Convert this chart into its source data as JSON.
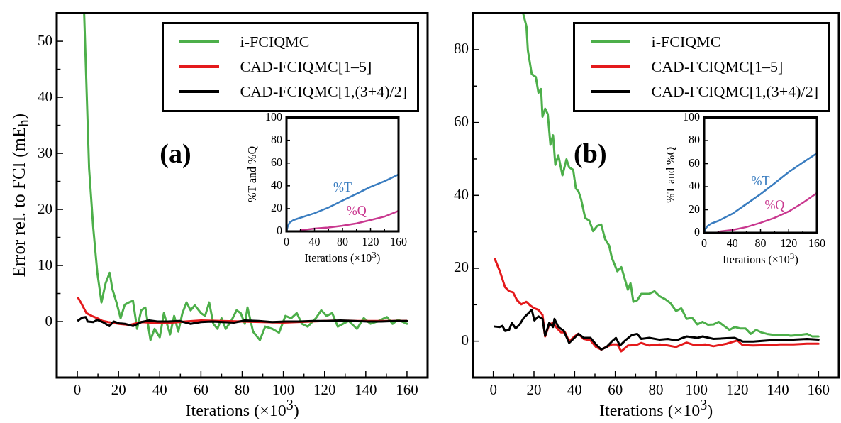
{
  "chart_data": [
    {
      "type": "line",
      "annotations": [
        "(a)"
      ],
      "xlabel": "Iterations (×10$^{3}$)",
      "ylabel": "Error rel. to FCI (mE$_{h}$)",
      "xlim": [
        -10,
        170
      ],
      "ylim": [
        -10,
        55
      ],
      "xticks": [
        0,
        {
          "value": 10,
          "label": null
        },
        20,
        {
          "value": 30,
          "label": null
        },
        40,
        {
          "value": 50,
          "label": null
        },
        60,
        {
          "value": 70,
          "label": null
        },
        80,
        {
          "value": 90,
          "label": null
        },
        100,
        {
          "value": 110,
          "label": null
        },
        120,
        {
          "value": 130,
          "label": null
        },
        140,
        {
          "value": 150,
          "label": null
        },
        160
      ],
      "yticks": [
        0,
        {
          "value": 5,
          "label": null
        },
        10,
        {
          "value": 15,
          "label": null
        },
        20,
        {
          "value": 25,
          "label": null
        },
        30,
        {
          "value": 35,
          "label": null
        },
        40,
        {
          "value": 45,
          "label": null
        },
        50
      ],
      "legend": "top right",
      "marker": "none",
      "line_style": "solid",
      "grid": false,
      "series": [
        {
          "name": "i-FCIQMC",
          "color": "#4daf4a",
          "x": [
            3.3,
            5.7,
            7.7,
            9.7,
            11.7,
            13.7,
            15.7,
            17,
            19,
            21,
            23,
            25,
            27,
            29,
            31,
            33,
            35.5,
            37.5,
            40,
            42,
            45,
            47,
            49,
            51,
            53,
            55,
            57,
            60,
            62,
            64,
            66,
            68,
            70,
            72,
            74.7,
            77.3,
            79.3,
            81.3,
            82.6,
            85.3,
            88.6,
            91.2,
            94.6,
            97.9,
            101,
            103.8,
            106.5,
            109,
            111.8,
            115.8,
            118.4,
            121,
            123.7,
            126.4,
            129,
            131.7,
            135.7,
            139,
            142.3,
            146.3,
            150.3,
            153,
            155.6,
            160
          ],
          "values": [
            55,
            27.3,
            16.8,
            8.7,
            3.4,
            6.8,
            8.7,
            5.8,
            3.4,
            0.6,
            3,
            3.4,
            3.7,
            -1.3,
            2,
            2.5,
            -3.3,
            -1.3,
            -2.8,
            1.5,
            -2.3,
            1,
            -1.8,
            1.5,
            3.4,
            2,
            2.9,
            1.5,
            1,
            3.4,
            -0.4,
            -1.3,
            0.6,
            -1.3,
            0.1,
            2,
            1.5,
            -0.4,
            2.5,
            -1.8,
            -3.3,
            -0.9,
            -1.3,
            -2,
            1,
            0.6,
            1.5,
            -0.4,
            -0.9,
            0.6,
            2,
            1,
            1.5,
            -0.9,
            -0.4,
            0.1,
            -1.3,
            0.6,
            -0.4,
            0.1,
            0.8,
            -0.4,
            0.3,
            -0.4
          ]
        },
        {
          "name": "CAD-FCIQMC[1–5]",
          "color": "#e41a1c",
          "x": [
            0.4,
            1.7,
            4.4,
            7,
            9.7,
            12.3,
            15,
            20.3,
            25.6,
            31,
            41.5,
            60,
            80,
            100,
            120,
            140,
            160
          ],
          "values": [
            4.2,
            3.4,
            1.5,
            1,
            0.6,
            0.1,
            -0.1,
            -0.4,
            -0.6,
            -0.1,
            -0.3,
            0.2,
            0,
            -0.2,
            0.1,
            0.1,
            0.1
          ]
        },
        {
          "name": "CAD-FCIQMC[1,(3+4)/2]",
          "color": "#000000",
          "x": [
            0.4,
            2.4,
            4.1,
            5,
            7.7,
            9.7,
            12.3,
            15.6,
            17.6,
            20.3,
            23,
            27,
            31,
            34.9,
            38.9,
            44,
            49.5,
            55,
            60,
            65.4,
            70.7,
            76,
            81.3,
            88,
            94.6,
            101,
            107.8,
            114.5,
            121,
            127.7,
            134.3,
            141,
            147.6,
            154.2,
            160
          ],
          "values": [
            0.2,
            0.7,
            0.8,
            0,
            -0.1,
            0.3,
            -0.1,
            -0.8,
            0,
            -0.3,
            -0.4,
            -0.8,
            -0.1,
            0.2,
            0,
            0,
            0.1,
            -0.4,
            -0.1,
            0,
            -0.1,
            -0.2,
            0.2,
            0.1,
            -0.1,
            0,
            0,
            0.1,
            0.1,
            0.2,
            0.1,
            0,
            0,
            0.1,
            0.1
          ]
        }
      ]
    },
    {
      "type": "line",
      "xlabel": "Iterations (×10$^{3}$)",
      "ylabel": "%T and %Q",
      "xlim": [
        0,
        160
      ],
      "ylim": [
        0,
        100
      ],
      "xticks": [
        0,
        {
          "value": 20,
          "label": null
        },
        40,
        {
          "value": 60,
          "label": null
        },
        80,
        {
          "value": 100,
          "label": null
        },
        120,
        {
          "value": 140,
          "label": null
        },
        160
      ],
      "yticks": [
        0,
        20,
        40,
        60,
        80,
        100
      ],
      "marker": "none",
      "line_style": "solid",
      "grid": false,
      "series": [
        {
          "name": "%T",
          "color": "#3a7dc0",
          "x": [
            0,
            2,
            5,
            10,
            20,
            40,
            60,
            80,
            100,
            120,
            140,
            160
          ],
          "values": [
            0,
            5,
            8,
            10,
            12,
            16,
            21,
            27,
            33,
            39,
            44,
            50
          ]
        },
        {
          "name": "%Q",
          "color": "#c9388f",
          "x": [
            20,
            40,
            60,
            80,
            100,
            120,
            140,
            160
          ],
          "values": [
            1,
            2.5,
            3.5,
            5,
            7,
            10,
            13,
            18
          ]
        }
      ]
    },
    {
      "type": "line",
      "annotations": [
        "(b)"
      ],
      "xlabel": "Iterations (×10$^{3}$)",
      "xlim": [
        -10,
        170
      ],
      "ylim": [
        -10,
        90
      ],
      "xticks": [
        0,
        {
          "value": 10,
          "label": null
        },
        20,
        {
          "value": 30,
          "label": null
        },
        40,
        {
          "value": 50,
          "label": null
        },
        60,
        {
          "value": 70,
          "label": null
        },
        80,
        {
          "value": 90,
          "label": null
        },
        100,
        {
          "value": 110,
          "label": null
        },
        120,
        {
          "value": 130,
          "label": null
        },
        140,
        {
          "value": 150,
          "label": null
        },
        160
      ],
      "yticks": [
        0,
        {
          "value": 10,
          "label": null
        },
        20,
        {
          "value": 30,
          "label": null
        },
        40,
        {
          "value": 50,
          "label": null
        },
        60,
        {
          "value": 70,
          "label": null
        },
        80
      ],
      "legend": "top right",
      "marker": "none",
      "line_style": "solid",
      "grid": false,
      "series": [
        {
          "name": "i-FCIQMC",
          "color": "#4daf4a",
          "x": [
            14.7,
            16.3,
            17,
            18.9,
            20.9,
            22.2,
            23.5,
            24.2,
            25.5,
            26.8,
            28.1,
            29.4,
            30.5,
            32,
            34,
            36,
            37.3,
            39.3,
            40.6,
            41.9,
            43.2,
            45.2,
            47.2,
            49.1,
            51.1,
            53.1,
            55,
            57,
            58.3,
            61,
            63,
            64.3,
            66.2,
            67.5,
            68.9,
            70.8,
            72.8,
            76.7,
            79.3,
            81.9,
            84.6,
            87.2,
            89.9,
            92.5,
            95.1,
            97.8,
            100.4,
            103,
            105.6,
            108.3,
            110.9,
            113.5,
            116.2,
            118.8,
            121.4,
            124.1,
            126.7,
            129.3,
            131.9,
            134.6,
            138.5,
            142.4,
            146.4,
            150.3,
            154.3,
            156.9,
            160
          ],
          "values": [
            89.9,
            86.4,
            79.8,
            73.3,
            72.5,
            68.2,
            69.2,
            61.6,
            63.8,
            62.3,
            53.9,
            56.5,
            48.4,
            51,
            45.5,
            49.9,
            47.7,
            47,
            41.9,
            41.1,
            38.9,
            33.8,
            33.1,
            30.2,
            31.6,
            32,
            28,
            26.2,
            22.9,
            19.2,
            20.3,
            17.8,
            14.1,
            15.9,
            10.8,
            11.2,
            13,
            13,
            13.7,
            12.3,
            11.5,
            10.4,
            8.3,
            9,
            6.1,
            6.4,
            4.6,
            5.3,
            4.5,
            4.6,
            5.3,
            4.2,
            3.1,
            3.9,
            3.5,
            3.5,
            2,
            3.1,
            2.4,
            2,
            1.7,
            1.8,
            1.5,
            1.7,
            2,
            1.3,
            1.3
          ]
        },
        {
          "name": "CAD-FCIQMC[1–5]",
          "color": "#e41a1c",
          "x": [
            0.8,
            3.2,
            4.5,
            5.8,
            7.8,
            9.7,
            11.7,
            13.7,
            16.3,
            18.3,
            20.2,
            22.2,
            24.2,
            25.5,
            27.5,
            29.4,
            31.4,
            33.4,
            35.3,
            37.3,
            39.9,
            41.9,
            44.5,
            47.8,
            50.5,
            53.1,
            55.7,
            58.3,
            61,
            62.9,
            66.2,
            70.2,
            72.8,
            76.7,
            81.9,
            85.9,
            89.9,
            95.1,
            99.1,
            104.3,
            108.3,
            114.8,
            120.1,
            122.7,
            127.9,
            134.6,
            141.1,
            147.7,
            154.3,
            160
          ],
          "values": [
            22.5,
            19.2,
            17,
            14.8,
            13.7,
            13.4,
            11.2,
            10.1,
            10.8,
            9.7,
            9,
            8.6,
            7.2,
            1.3,
            4.6,
            5,
            3.5,
            2.4,
            2.4,
            -0.1,
            1.3,
            2,
            0.6,
            0.2,
            -1.6,
            -2.3,
            -1.6,
            -0.9,
            -0.9,
            -2.8,
            -1.2,
            -1.1,
            -0.5,
            -1.2,
            -0.9,
            -1.2,
            -1.6,
            -0.4,
            -1.1,
            -0.9,
            -1.4,
            -0.7,
            0.2,
            -1.1,
            -1.2,
            -1.1,
            -0.9,
            -0.9,
            -0.7,
            -0.7
          ]
        },
        {
          "name": "CAD-FCIQMC[1,(3+4)/2]",
          "color": "#000000",
          "x": [
            0.8,
            3.2,
            4.5,
            5.8,
            7.8,
            9.1,
            11,
            13,
            15,
            17,
            18.9,
            20.2,
            22.2,
            24.2,
            25.5,
            27.5,
            29.4,
            30.1,
            32,
            34.7,
            37.3,
            39.9,
            41.9,
            44.5,
            47.8,
            50.5,
            53.1,
            55.7,
            58.3,
            60.3,
            62.3,
            64.9,
            68.2,
            70.8,
            72.8,
            76.7,
            81.9,
            85.9,
            89.9,
            95.1,
            100.4,
            103,
            108.3,
            114.8,
            118.8,
            122.7,
            127.9,
            134.6,
            141.1,
            147.7,
            154.3,
            160
          ],
          "values": [
            4,
            3.9,
            4.2,
            2.8,
            3.1,
            5,
            3.5,
            4.6,
            6.4,
            7.5,
            8.6,
            5.7,
            6.8,
            6.1,
            1.5,
            5,
            3.9,
            6.1,
            3.9,
            2.8,
            -0.5,
            0.9,
            2,
            0.9,
            0.9,
            -0.9,
            -2.3,
            -1.6,
            -0.1,
            0.9,
            -1.2,
            0.2,
            1.7,
            2,
            0.6,
            0.9,
            0.4,
            0.6,
            0.2,
            1.3,
            0.9,
            1.3,
            0.6,
            0.8,
            0.9,
            -0.1,
            -0.1,
            0.2,
            0.4,
            0.4,
            0.6,
            0.4
          ]
        }
      ]
    },
    {
      "type": "line",
      "xlabel": "Iterations (×10$^{3}$)",
      "ylabel": "%T and %Q",
      "xlim": [
        0,
        160
      ],
      "ylim": [
        0,
        100
      ],
      "xticks": [
        0,
        {
          "value": 20,
          "label": null
        },
        40,
        {
          "value": 60,
          "label": null
        },
        80,
        {
          "value": 100,
          "label": null
        },
        120,
        {
          "value": 140,
          "label": null
        },
        160
      ],
      "yticks": [
        0,
        20,
        40,
        60,
        80,
        100
      ],
      "marker": "none",
      "line_style": "solid",
      "grid": false,
      "series": [
        {
          "name": "%T",
          "color": "#3a7dc0",
          "x": [
            0,
            2,
            5,
            10,
            20,
            40,
            60,
            80,
            100,
            120,
            140,
            160
          ],
          "values": [
            0,
            3.5,
            6,
            8,
            10.3,
            16.5,
            25,
            33.6,
            43,
            52.6,
            61,
            69
          ]
        },
        {
          "name": "%Q",
          "color": "#c9388f",
          "x": [
            20,
            40,
            60,
            80,
            100,
            120,
            140,
            160
          ],
          "values": [
            1,
            2.5,
            5,
            8.7,
            13,
            18.5,
            26,
            34.5
          ]
        }
      ]
    }
  ]
}
